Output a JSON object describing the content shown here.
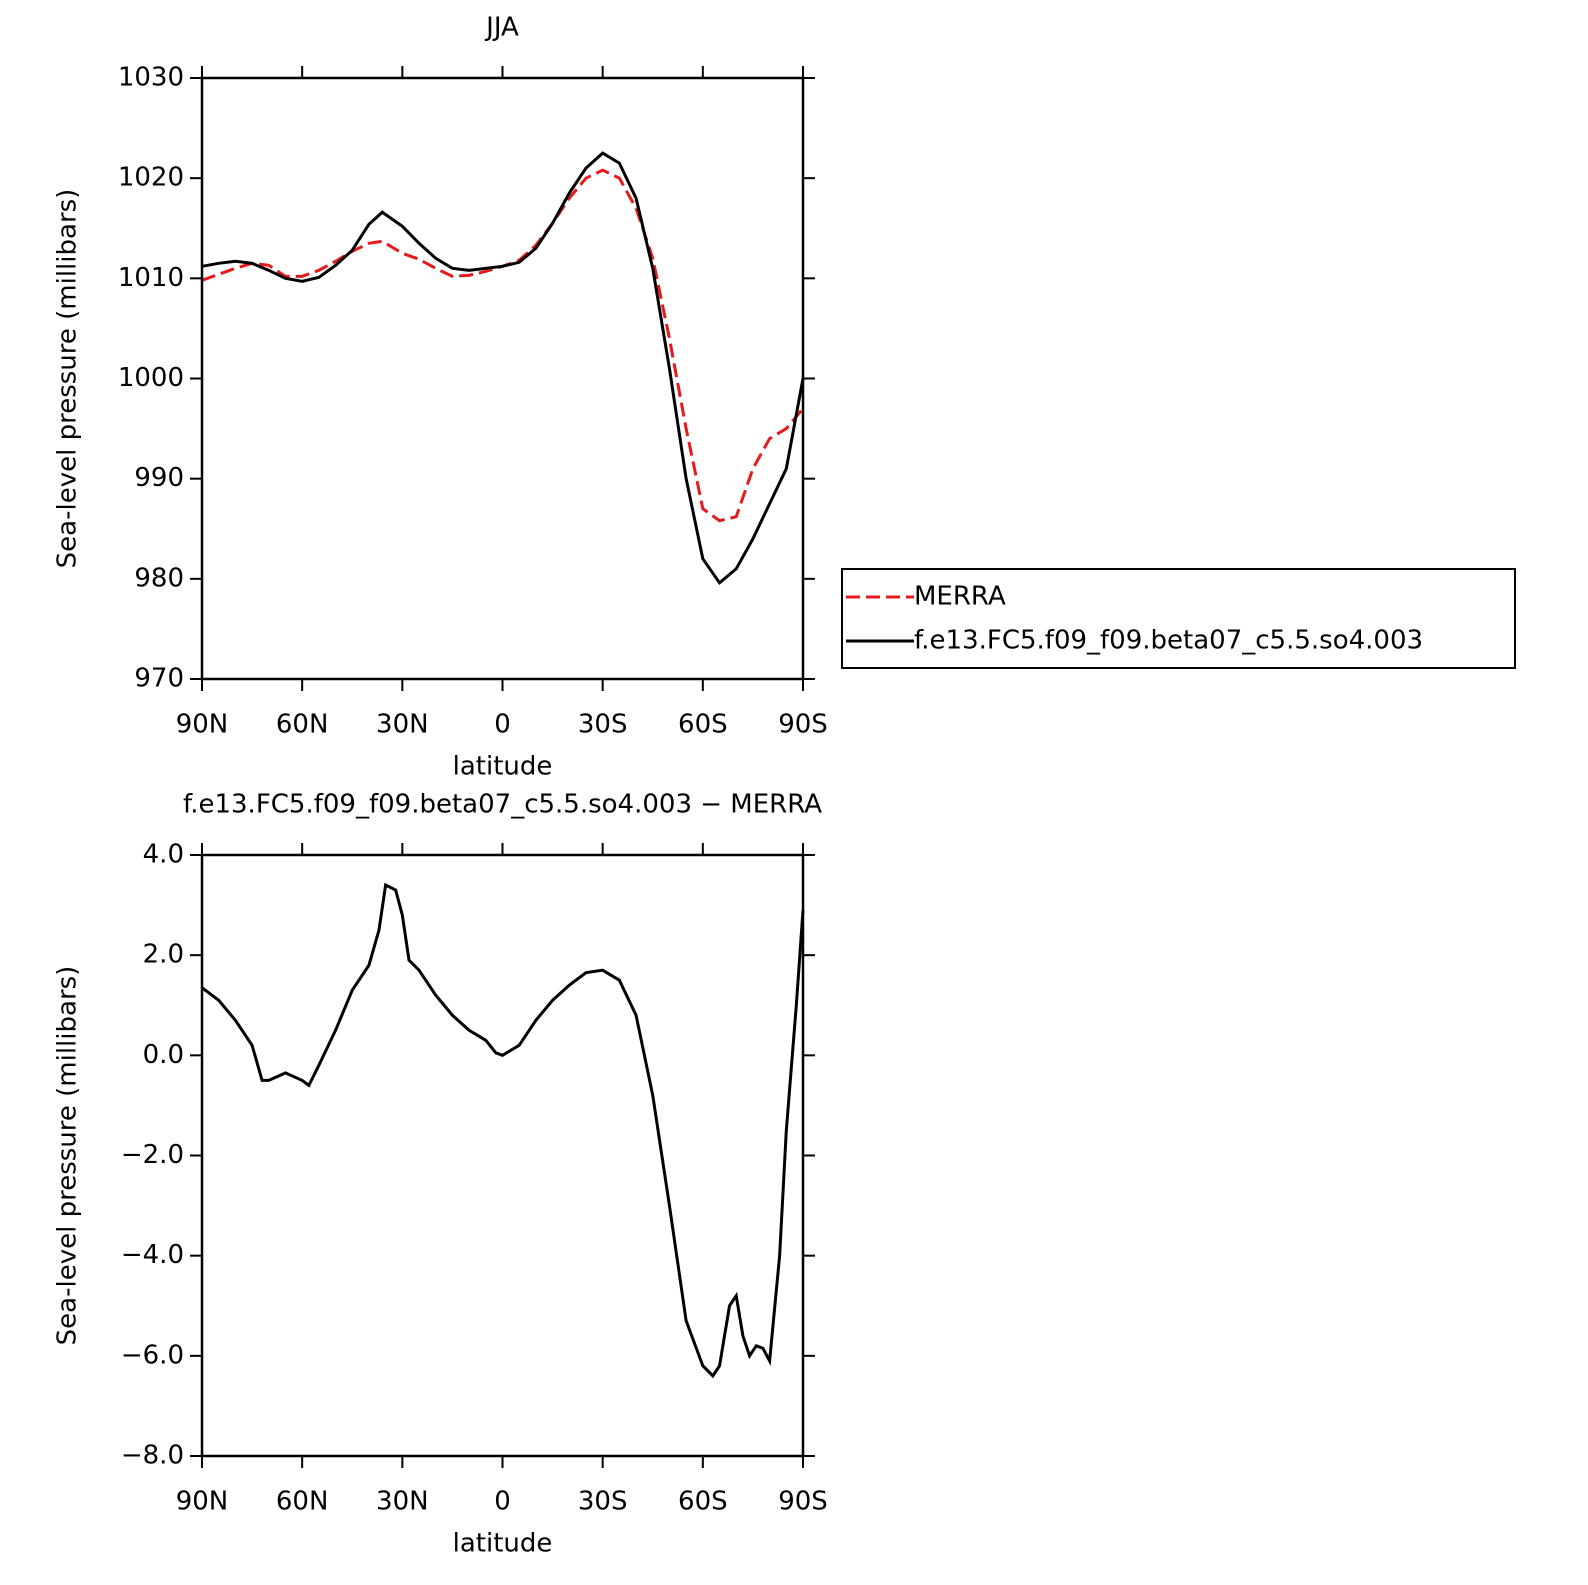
{
  "chart_data": [
    {
      "type": "line",
      "title": "JJA",
      "xlabel": "latitude",
      "ylabel": "Sea-level pressure (millibars)",
      "xlim": [
        90,
        -90
      ],
      "ylim": [
        970,
        1030
      ],
      "xticks": [
        {
          "value": 90,
          "label": "90N"
        },
        {
          "value": 60,
          "label": "60N"
        },
        {
          "value": 30,
          "label": "30N"
        },
        0,
        {
          "value": -30,
          "label": "30S"
        },
        {
          "value": -60,
          "label": "60S"
        },
        {
          "value": -90,
          "label": "90S"
        }
      ],
      "yticks": [
        970,
        980,
        990,
        1000,
        1010,
        1020,
        1030
      ],
      "x": [
        90,
        85,
        80,
        75,
        70,
        65,
        60,
        55,
        50,
        45,
        40,
        36,
        30,
        25,
        20,
        15,
        10,
        5,
        0,
        -5,
        -10,
        -15,
        -20,
        -25,
        -30,
        -35,
        -40,
        -45,
        -50,
        -55,
        -60,
        -65,
        -70,
        -75,
        -80,
        -85,
        -90
      ],
      "legend": "right",
      "series": [
        {
          "name": "MERRA",
          "color": "#e41a1c",
          "dash": true,
          "values": [
            1009.8,
            1010.4,
            1011.0,
            1011.5,
            1011.3,
            1010.2,
            1010.2,
            1010.8,
            1011.7,
            1012.7,
            1013.5,
            1013.7,
            1012.5,
            1011.9,
            1011.0,
            1010.2,
            1010.3,
            1010.7,
            1011.2,
            1011.8,
            1013.3,
            1015.5,
            1018.0,
            1020.0,
            1020.8,
            1020.0,
            1017.0,
            1012.0,
            1004.0,
            995.0,
            987.0,
            985.8,
            986.2,
            991.0,
            994.0,
            995.0,
            997.0
          ]
        },
        {
          "name": "f.e13.FC5.f09_f09.beta07_c5.5.so4.003",
          "color": "#000000",
          "dash": false,
          "values": [
            1011.2,
            1011.5,
            1011.7,
            1011.5,
            1010.8,
            1010.0,
            1009.7,
            1010.1,
            1011.3,
            1012.8,
            1015.4,
            1016.6,
            1015.2,
            1013.5,
            1012.0,
            1011.0,
            1010.8,
            1011.0,
            1011.2,
            1011.6,
            1013.0,
            1015.5,
            1018.5,
            1021.0,
            1022.5,
            1021.5,
            1018.0,
            1011.0,
            1001.0,
            990.0,
            982.0,
            979.6,
            981.0,
            984.0,
            987.5,
            991.0,
            1000.0
          ]
        }
      ]
    },
    {
      "type": "line",
      "title": "f.e13.FC5.f09_f09.beta07_c5.5.so4.003 − MERRA",
      "xlabel": "latitude",
      "ylabel": "Sea-level pressure (millibars)",
      "xlim": [
        90,
        -90
      ],
      "ylim": [
        -8,
        4
      ],
      "xticks": [
        {
          "value": 90,
          "label": "90N"
        },
        {
          "value": 60,
          "label": "60N"
        },
        {
          "value": 30,
          "label": "30N"
        },
        0,
        {
          "value": -30,
          "label": "30S"
        },
        {
          "value": -60,
          "label": "60S"
        },
        {
          "value": -90,
          "label": "90S"
        }
      ],
      "yticks": [
        {
          "value": -8,
          "label": "−8.0"
        },
        {
          "value": -6,
          "label": "−6.0"
        },
        {
          "value": -4,
          "label": "−4.0"
        },
        {
          "value": -2,
          "label": "−2.0"
        },
        {
          "value": 0,
          "label": "0.0"
        },
        {
          "value": 2,
          "label": "2.0"
        },
        {
          "value": 4,
          "label": "4.0"
        }
      ],
      "x": [
        90,
        85,
        80,
        75,
        72,
        70,
        65,
        60,
        58,
        55,
        50,
        45,
        40,
        37,
        35,
        32,
        30,
        28,
        25,
        20,
        15,
        10,
        5,
        2,
        0,
        -5,
        -10,
        -15,
        -20,
        -25,
        -30,
        -35,
        -40,
        -45,
        -50,
        -55,
        -60,
        -63,
        -65,
        -68,
        -70,
        -72,
        -74,
        -76,
        -78,
        -80,
        -83,
        -85,
        -88,
        -90
      ],
      "series": [
        {
          "color": "#000000",
          "dash": false,
          "values": [
            1.35,
            1.1,
            0.7,
            0.2,
            -0.5,
            -0.5,
            -0.35,
            -0.5,
            -0.6,
            -0.2,
            0.5,
            1.3,
            1.8,
            2.5,
            3.4,
            3.3,
            2.8,
            1.9,
            1.7,
            1.2,
            0.8,
            0.5,
            0.3,
            0.05,
            0.0,
            0.2,
            0.7,
            1.1,
            1.4,
            1.65,
            1.7,
            1.5,
            0.8,
            -0.8,
            -3.0,
            -5.3,
            -6.2,
            -6.4,
            -6.2,
            -5.0,
            -4.8,
            -5.6,
            -6.0,
            -5.8,
            -5.85,
            -6.1,
            -4.0,
            -1.5,
            1.0,
            2.9
          ]
        }
      ]
    }
  ]
}
